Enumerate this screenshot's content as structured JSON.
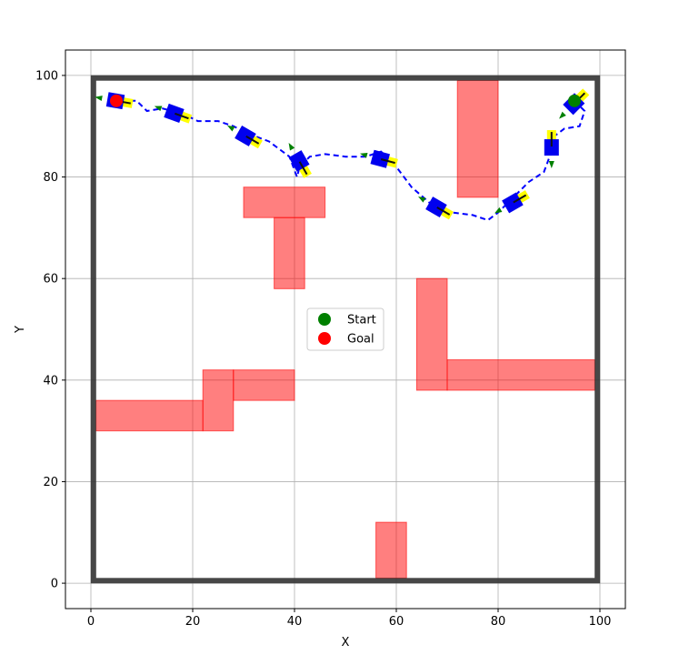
{
  "chart_data": {
    "type": "scatter",
    "title": "",
    "xlabel": "X",
    "ylabel": "Y",
    "xlim": [
      -5,
      105
    ],
    "ylim": [
      -5,
      105
    ],
    "grid": true,
    "xticks": [
      0,
      20,
      40,
      60,
      80,
      100
    ],
    "yticks": [
      0,
      20,
      40,
      60,
      80,
      100
    ],
    "legend": {
      "placement": "center",
      "entries": [
        {
          "label": "Start",
          "color": "#008000"
        },
        {
          "label": "Goal",
          "color": "#ff0000"
        }
      ]
    },
    "start": {
      "x": 95,
      "y": 95
    },
    "goal": {
      "x": 5,
      "y": 95
    },
    "boundary": {
      "x0": 0.5,
      "y0": 0.5,
      "x1": 99.5,
      "y1": 99.5,
      "color": "#333333"
    },
    "obstacles": [
      {
        "x0": 72,
        "y0": 76,
        "x1": 80,
        "y1": 99
      },
      {
        "x0": 30,
        "y0": 72,
        "x1": 46,
        "y1": 78
      },
      {
        "x0": 36,
        "y0": 58,
        "x1": 42,
        "y1": 72
      },
      {
        "x0": 64,
        "y0": 38,
        "x1": 70,
        "y1": 60
      },
      {
        "x0": 70,
        "y0": 38,
        "x1": 99,
        "y1": 44
      },
      {
        "x0": 1,
        "y0": 30,
        "x1": 22,
        "y1": 36
      },
      {
        "x0": 22,
        "y0": 30,
        "x1": 28,
        "y1": 42
      },
      {
        "x0": 28,
        "y0": 36,
        "x1": 40,
        "y1": 42
      },
      {
        "x0": 56,
        "y0": 1,
        "x1": 62,
        "y1": 12
      }
    ],
    "obstacle_color": "#ff0000",
    "path": {
      "style": "dashed",
      "color": "#0000ff",
      "points": [
        [
          95,
          95
        ],
        [
          97,
          93
        ],
        [
          96,
          90
        ],
        [
          93,
          89.5
        ],
        [
          91,
          88
        ],
        [
          90.5,
          85
        ],
        [
          89,
          81
        ],
        [
          86,
          79
        ],
        [
          83,
          76
        ],
        [
          80,
          73
        ],
        [
          78,
          71.5
        ],
        [
          75,
          72.5
        ],
        [
          71,
          73
        ],
        [
          67,
          74.5
        ],
        [
          63,
          78
        ],
        [
          60,
          82
        ],
        [
          57,
          85
        ],
        [
          54,
          84
        ],
        [
          50,
          84
        ],
        [
          46,
          84.5
        ],
        [
          43,
          84
        ],
        [
          41,
          82
        ],
        [
          40.5,
          80
        ],
        [
          39,
          84
        ],
        [
          35,
          87
        ],
        [
          31,
          88.5
        ],
        [
          28,
          90
        ],
        [
          25,
          91
        ],
        [
          21,
          91
        ],
        [
          18,
          92.5
        ],
        [
          14,
          93.5
        ],
        [
          11,
          93
        ],
        [
          9,
          95
        ],
        [
          5,
          95
        ]
      ]
    },
    "robot_poses": [
      {
        "x": 95,
        "y": 94.5,
        "theta": 45
      },
      {
        "x": 90.5,
        "y": 86,
        "theta": 90
      },
      {
        "x": 83,
        "y": 75,
        "theta": 30
      },
      {
        "x": 68,
        "y": 74,
        "theta": -30
      },
      {
        "x": 57,
        "y": 83.5,
        "theta": -15
      },
      {
        "x": 41,
        "y": 83,
        "theta": -60
      },
      {
        "x": 30.5,
        "y": 88,
        "theta": -30
      },
      {
        "x": 16.5,
        "y": 92.5,
        "theta": -20
      },
      {
        "x": 5,
        "y": 95,
        "theta": -10
      }
    ],
    "robot_colors": {
      "body": "#0000ee",
      "front": "#ffff00",
      "heading": "#008000",
      "axle": "#111111"
    }
  }
}
